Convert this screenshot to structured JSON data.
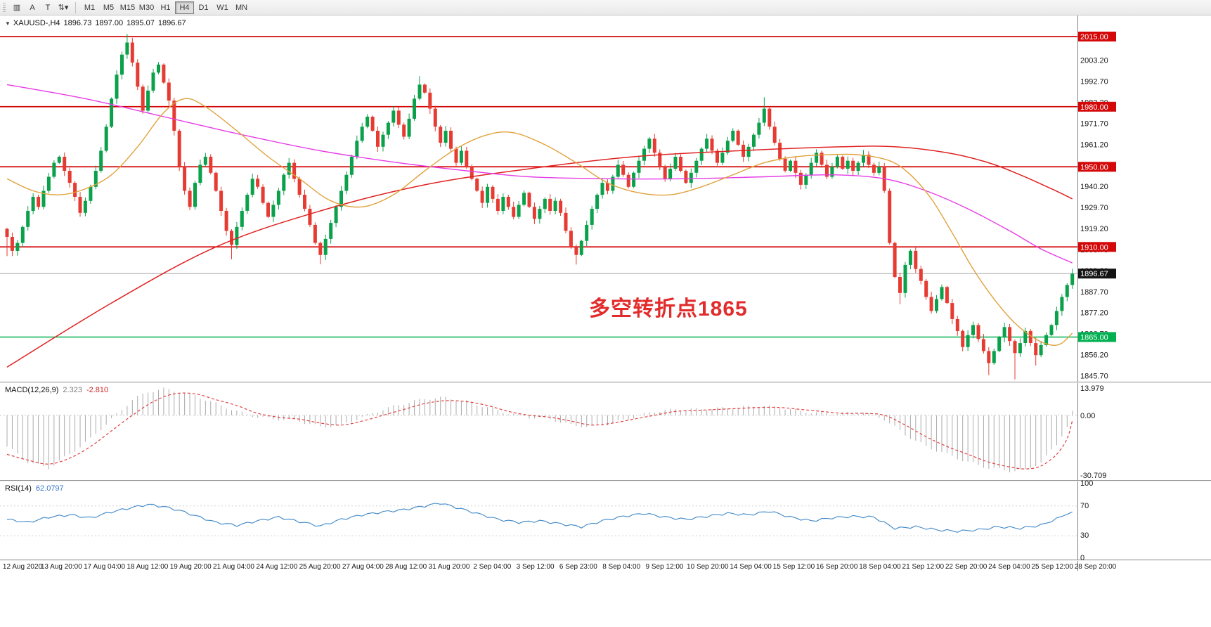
{
  "toolbar": {
    "icon_buttons": [
      {
        "name": "chart-grid-button",
        "glyph": "▥"
      },
      {
        "name": "font-tool-button",
        "glyph": "A"
      },
      {
        "name": "text-label-button",
        "glyph": "T"
      },
      {
        "name": "scale-mode-button",
        "glyph": "⇅▾"
      }
    ],
    "timeframes": [
      "M1",
      "M5",
      "M15",
      "M30",
      "H1",
      "H4",
      "D1",
      "W1",
      "MN"
    ],
    "active_timeframe": "H4"
  },
  "header": {
    "collapse_arrow": "▼",
    "symbol": "XAUUSD-,H4",
    "open": "1896.73",
    "high": "1897.00",
    "low": "1895.07",
    "close": "1896.67"
  },
  "annotation": {
    "text": "多空转折点1865",
    "color": "#e22b2b"
  },
  "indicators": {
    "macd": {
      "title": "MACD(12,26,9)",
      "value": "2.323",
      "signal": "-2.810"
    },
    "rsi": {
      "title": "RSI(14)",
      "value": "62.0797"
    }
  },
  "axis": {
    "price_ticks": [
      "2003.20",
      "1992.70",
      "1982.20",
      "1971.70",
      "1961.20",
      "1950.70",
      "1940.20",
      "1929.70",
      "1919.20",
      "1908.70",
      "1898.20",
      "1887.70",
      "1877.20",
      "1866.70",
      "1856.20",
      "1845.70"
    ],
    "macd_ticks": [
      "13.979",
      "0.00",
      "-30.709"
    ],
    "rsi_ticks": [
      "100",
      "70",
      "30",
      "0"
    ],
    "time_labels": [
      "12 Aug 2020",
      "13 Aug 20:00",
      "17 Aug 04:00",
      "18 Aug 12:00",
      "19 Aug 20:00",
      "21 Aug 04:00",
      "24 Aug 12:00",
      "25 Aug 20:00",
      "27 Aug 04:00",
      "28 Aug 12:00",
      "31 Aug 20:00",
      "2 Sep 04:00",
      "3 Sep 12:00",
      "6 Sep 23:00",
      "8 Sep 04:00",
      "9 Sep 12:00",
      "10 Sep 20:00",
      "14 Sep 04:00",
      "15 Sep 12:00",
      "16 Sep 20:00",
      "18 Sep 04:00",
      "21 Sep 12:00",
      "22 Sep 20:00",
      "24 Sep 04:00",
      "25 Sep 12:00",
      "28 Sep 20:00"
    ]
  },
  "levels": [
    {
      "label": "2015.00",
      "price": 2015.0,
      "color": "#d40808",
      "width": 1.8
    },
    {
      "label": "1980.00",
      "price": 1980.0,
      "color": "#d40808",
      "width": 1.8
    },
    {
      "label": "1950.00",
      "price": 1950.0,
      "color": "#d40808",
      "width": 1.8
    },
    {
      "label": "1910.00",
      "price": 1910.0,
      "color": "#d40808",
      "width": 1.8
    },
    {
      "label": "1865.00",
      "price": 1865.0,
      "color": "#00b050",
      "width": 1.5
    }
  ],
  "current_price": {
    "label": "1896.67",
    "value": 1896.67,
    "line_color": "#a8a8a8",
    "box_color": "#141414"
  },
  "chart_data": {
    "type": "candlestick",
    "symbol": "XAUUSD-",
    "timeframe": "H4",
    "title": "XAUUSD-,H4 1896.73 1897.00 1895.07 1896.67",
    "price_range": {
      "min": 1843,
      "max": 2018
    },
    "up_color": "#0aa14a",
    "down_color": "#e53b32",
    "first_open": 1919,
    "closes": [
      1915,
      1908,
      1912,
      1920,
      1928,
      1935,
      1930,
      1938,
      1945,
      1952,
      1955,
      1948,
      1942,
      1935,
      1927,
      1933,
      1940,
      1948,
      1958,
      1970,
      1984,
      1996,
      2006,
      2012,
      2002,
      1990,
      1978,
      1988,
      1997,
      2001,
      1992,
      1983,
      1968,
      1950,
      1938,
      1930,
      1942,
      1951,
      1955,
      1947,
      1938,
      1928,
      1918,
      1911,
      1920,
      1928,
      1936,
      1944,
      1940,
      1932,
      1925,
      1931,
      1938,
      1946,
      1952,
      1944,
      1936,
      1929,
      1921,
      1912,
      1906,
      1914,
      1922,
      1930,
      1938,
      1946,
      1955,
      1963,
      1970,
      1975,
      1968,
      1960,
      1966,
      1972,
      1978,
      1971,
      1965,
      1974,
      1984,
      1991,
      1987,
      1979,
      1970,
      1962,
      1968,
      1959,
      1952,
      1958,
      1950,
      1944,
      1938,
      1932,
      1940,
      1934,
      1928,
      1935,
      1930,
      1925,
      1931,
      1937,
      1930,
      1924,
      1929,
      1934,
      1928,
      1933,
      1927,
      1918,
      1910,
      1906,
      1913,
      1921,
      1929,
      1936,
      1942,
      1938,
      1945,
      1951,
      1946,
      1940,
      1947,
      1953,
      1959,
      1964,
      1957,
      1950,
      1944,
      1949,
      1955,
      1948,
      1942,
      1947,
      1953,
      1959,
      1964,
      1958,
      1952,
      1957,
      1963,
      1968,
      1961,
      1955,
      1960,
      1966,
      1972,
      1979,
      1970,
      1962,
      1954,
      1948,
      1953,
      1947,
      1941,
      1946,
      1952,
      1957,
      1951,
      1945,
      1950,
      1955,
      1949,
      1953,
      1948,
      1952,
      1956,
      1951,
      1947,
      1950,
      1938,
      1912,
      1895,
      1887,
      1901,
      1908,
      1899,
      1893,
      1885,
      1878,
      1884,
      1890,
      1882,
      1874,
      1868,
      1860,
      1866,
      1871,
      1864,
      1858,
      1852,
      1858,
      1865,
      1870,
      1863,
      1857,
      1862,
      1868,
      1862,
      1856,
      1861,
      1866,
      1871,
      1878,
      1885,
      1891,
      1896.67
    ],
    "wick_hi": {
      "23": 3.5,
      "79": 3,
      "145": 4
    },
    "wick_lo": {
      "0": 9,
      "43": 5,
      "60": 4,
      "109": 4,
      "171": 3,
      "188": 5,
      "193": 11,
      "197": 4
    },
    "moving_averages": [
      {
        "name": "slow-red",
        "color": "#e02222",
        "width": 1.5,
        "points": [
          [
            0,
            1850
          ],
          [
            20,
            1882
          ],
          [
            40,
            1910
          ],
          [
            60,
            1928
          ],
          [
            80,
            1941
          ],
          [
            100,
            1949
          ],
          [
            120,
            1955
          ],
          [
            140,
            1958
          ],
          [
            160,
            1960
          ],
          [
            170,
            1960
          ],
          [
            180,
            1957
          ],
          [
            188,
            1952
          ],
          [
            194,
            1946
          ],
          [
            200,
            1939
          ],
          [
            204,
            1934
          ]
        ]
      },
      {
        "name": "magenta",
        "color": "#e63ce6",
        "width": 1.4,
        "points": [
          [
            0,
            1991
          ],
          [
            15,
            1984
          ],
          [
            30,
            1975
          ],
          [
            45,
            1966
          ],
          [
            60,
            1958
          ],
          [
            75,
            1952
          ],
          [
            88,
            1948
          ],
          [
            100,
            1945
          ],
          [
            115,
            1944
          ],
          [
            130,
            1944
          ],
          [
            145,
            1945
          ],
          [
            158,
            1946
          ],
          [
            168,
            1944
          ],
          [
            176,
            1938
          ],
          [
            184,
            1929
          ],
          [
            192,
            1918
          ],
          [
            198,
            1909
          ],
          [
            204,
            1902
          ]
        ]
      },
      {
        "name": "fast-orange",
        "color": "#e0a23c",
        "width": 1.4,
        "points": [
          [
            0,
            1944
          ],
          [
            5,
            1938
          ],
          [
            10,
            1936
          ],
          [
            15,
            1939
          ],
          [
            20,
            1946
          ],
          [
            25,
            1960
          ],
          [
            30,
            1977
          ],
          [
            34,
            1984
          ],
          [
            38,
            1980
          ],
          [
            44,
            1968
          ],
          [
            50,
            1955
          ],
          [
            56,
            1944
          ],
          [
            62,
            1933
          ],
          [
            68,
            1930
          ],
          [
            74,
            1936
          ],
          [
            80,
            1948
          ],
          [
            86,
            1959
          ],
          [
            92,
            1966
          ],
          [
            97,
            1967
          ],
          [
            103,
            1961
          ],
          [
            109,
            1952
          ],
          [
            115,
            1942
          ],
          [
            121,
            1937
          ],
          [
            127,
            1936
          ],
          [
            133,
            1940
          ],
          [
            139,
            1946
          ],
          [
            145,
            1952
          ],
          [
            151,
            1955
          ],
          [
            157,
            1956
          ],
          [
            163,
            1956
          ],
          [
            169,
            1953
          ],
          [
            173,
            1946
          ],
          [
            177,
            1934
          ],
          [
            181,
            1917
          ],
          [
            185,
            1899
          ],
          [
            189,
            1884
          ],
          [
            193,
            1872
          ],
          [
            197,
            1864
          ],
          [
            200,
            1861
          ],
          [
            202,
            1862
          ],
          [
            204,
            1867
          ]
        ]
      }
    ],
    "macd": {
      "range": [
        -30.709,
        13.979
      ],
      "histogram_color": "#ababab",
      "signal_color": "#e04040",
      "line": [
        [
          0,
          -16
        ],
        [
          4,
          -24
        ],
        [
          8,
          -27
        ],
        [
          12,
          -20
        ],
        [
          16,
          -12
        ],
        [
          20,
          -2
        ],
        [
          24,
          8
        ],
        [
          27,
          12
        ],
        [
          30,
          13.5
        ],
        [
          33,
          12
        ],
        [
          36,
          10
        ],
        [
          40,
          6
        ],
        [
          44,
          2
        ],
        [
          48,
          -1
        ],
        [
          52,
          -2
        ],
        [
          56,
          -3
        ],
        [
          60,
          -6
        ],
        [
          64,
          -5
        ],
        [
          68,
          -1
        ],
        [
          72,
          3
        ],
        [
          76,
          6
        ],
        [
          80,
          8.5
        ],
        [
          84,
          9
        ],
        [
          88,
          7
        ],
        [
          92,
          4
        ],
        [
          96,
          1
        ],
        [
          100,
          -1
        ],
        [
          104,
          -2
        ],
        [
          108,
          -5
        ],
        [
          112,
          -6
        ],
        [
          116,
          -4
        ],
        [
          120,
          -1
        ],
        [
          124,
          2
        ],
        [
          128,
          3
        ],
        [
          132,
          3
        ],
        [
          136,
          3.5
        ],
        [
          140,
          4
        ],
        [
          144,
          5
        ],
        [
          148,
          4
        ],
        [
          152,
          2
        ],
        [
          156,
          1
        ],
        [
          160,
          1
        ],
        [
          164,
          1.5
        ],
        [
          168,
          -2
        ],
        [
          172,
          -10
        ],
        [
          176,
          -16
        ],
        [
          180,
          -20
        ],
        [
          184,
          -24
        ],
        [
          188,
          -27
        ],
        [
          192,
          -28.5
        ],
        [
          195,
          -28
        ],
        [
          198,
          -24
        ],
        [
          201,
          -15
        ],
        [
          203,
          -6
        ],
        [
          204,
          2.323
        ]
      ],
      "signal": [
        [
          0,
          -20
        ],
        [
          4,
          -23
        ],
        [
          8,
          -25
        ],
        [
          12,
          -22
        ],
        [
          16,
          -16
        ],
        [
          20,
          -8
        ],
        [
          24,
          0
        ],
        [
          28,
          7
        ],
        [
          32,
          11
        ],
        [
          36,
          11
        ],
        [
          40,
          8
        ],
        [
          44,
          5
        ],
        [
          48,
          1
        ],
        [
          52,
          -1
        ],
        [
          56,
          -2
        ],
        [
          60,
          -4
        ],
        [
          64,
          -5
        ],
        [
          68,
          -3
        ],
        [
          72,
          0
        ],
        [
          76,
          3
        ],
        [
          80,
          6
        ],
        [
          84,
          7.5
        ],
        [
          88,
          7
        ],
        [
          92,
          5
        ],
        [
          96,
          2
        ],
        [
          100,
          0
        ],
        [
          104,
          -1
        ],
        [
          108,
          -3
        ],
        [
          112,
          -5
        ],
        [
          116,
          -4
        ],
        [
          120,
          -2
        ],
        [
          124,
          0
        ],
        [
          128,
          2
        ],
        [
          132,
          2.5
        ],
        [
          136,
          3
        ],
        [
          140,
          3.5
        ],
        [
          144,
          4
        ],
        [
          148,
          4
        ],
        [
          152,
          3
        ],
        [
          156,
          2
        ],
        [
          160,
          1
        ],
        [
          164,
          1
        ],
        [
          168,
          0
        ],
        [
          172,
          -5
        ],
        [
          176,
          -11
        ],
        [
          180,
          -16
        ],
        [
          184,
          -20
        ],
        [
          188,
          -24
        ],
        [
          192,
          -26.5
        ],
        [
          195,
          -27.5
        ],
        [
          198,
          -26
        ],
        [
          201,
          -20
        ],
        [
          203,
          -12
        ],
        [
          204,
          -2.81
        ]
      ]
    },
    "rsi": {
      "range": [
        0,
        100
      ],
      "levels": [
        70,
        30
      ],
      "color": "#3d87c8",
      "line": [
        [
          0,
          52
        ],
        [
          4,
          48
        ],
        [
          8,
          55
        ],
        [
          12,
          58
        ],
        [
          16,
          54
        ],
        [
          20,
          62
        ],
        [
          24,
          68
        ],
        [
          27,
          72
        ],
        [
          30,
          69
        ],
        [
          33,
          64
        ],
        [
          36,
          57
        ],
        [
          40,
          48
        ],
        [
          44,
          44
        ],
        [
          48,
          50
        ],
        [
          52,
          55
        ],
        [
          56,
          49
        ],
        [
          60,
          43
        ],
        [
          64,
          52
        ],
        [
          68,
          58
        ],
        [
          72,
          62
        ],
        [
          76,
          65
        ],
        [
          80,
          70
        ],
        [
          83,
          74
        ],
        [
          86,
          68
        ],
        [
          90,
          60
        ],
        [
          94,
          52
        ],
        [
          98,
          48
        ],
        [
          102,
          50
        ],
        [
          106,
          46
        ],
        [
          110,
          42
        ],
        [
          114,
          50
        ],
        [
          118,
          56
        ],
        [
          122,
          60
        ],
        [
          126,
          55
        ],
        [
          130,
          52
        ],
        [
          134,
          56
        ],
        [
          138,
          60
        ],
        [
          142,
          58
        ],
        [
          146,
          63
        ],
        [
          150,
          55
        ],
        [
          154,
          50
        ],
        [
          158,
          54
        ],
        [
          162,
          56
        ],
        [
          166,
          55
        ],
        [
          170,
          40
        ],
        [
          174,
          42
        ],
        [
          178,
          38
        ],
        [
          182,
          36
        ],
        [
          186,
          38
        ],
        [
          190,
          42
        ],
        [
          194,
          40
        ],
        [
          198,
          44
        ],
        [
          200,
          50
        ],
        [
          202,
          56
        ],
        [
          204,
          62.08
        ]
      ]
    }
  }
}
